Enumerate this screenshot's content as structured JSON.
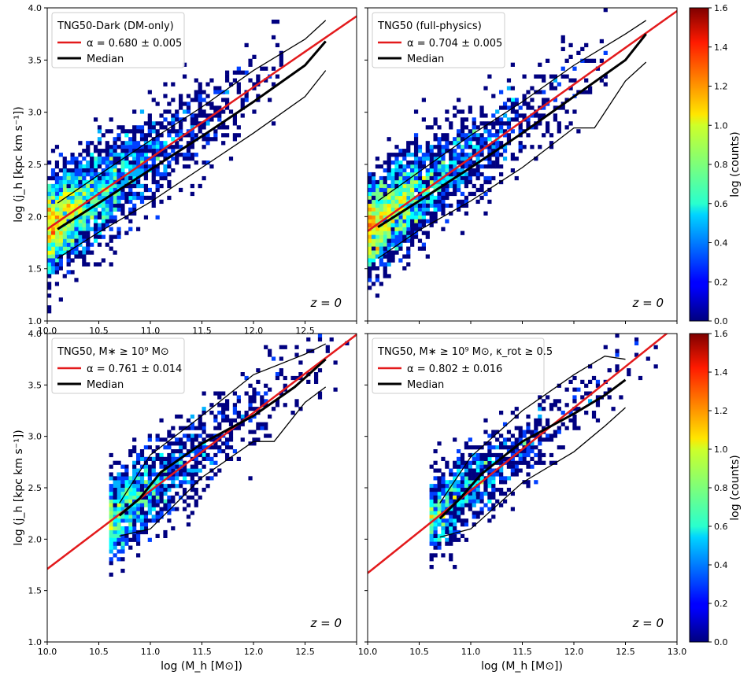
{
  "chart_data": [
    {
      "type": "heatmap",
      "panel": "top-left",
      "title": "TNG50-Dark (DM-only)",
      "legend": [
        {
          "label": "α = 0.680 ± 0.005",
          "color": "#e31a1c"
        },
        {
          "label": "Median",
          "color": "#000000"
        }
      ],
      "annotation": "z = 0",
      "xlim": [
        10.0,
        13.0
      ],
      "ylim": [
        1.0,
        4.0
      ],
      "xticks": [
        "10.0",
        "10.5",
        "11.0",
        "11.5",
        "12.0",
        "12.5"
      ],
      "yticks": [
        "1.0",
        "1.5",
        "2.0",
        "2.5",
        "3.0",
        "3.5",
        "4.0"
      ],
      "xlabel": "",
      "ylabel": "log (j_h [kpc km s⁻¹])",
      "fit": {
        "slope": 0.68,
        "x": [
          10.0,
          13.0
        ],
        "y": [
          1.88,
          3.92
        ]
      },
      "median": {
        "x": [
          10.1,
          10.5,
          11.0,
          11.5,
          12.0,
          12.5,
          12.7
        ],
        "y": [
          1.88,
          2.13,
          2.45,
          2.77,
          3.1,
          3.45,
          3.68
        ]
      },
      "p16": {
        "x": [
          10.1,
          10.5,
          11.0,
          11.5,
          12.0,
          12.5,
          12.7
        ],
        "y": [
          1.6,
          1.85,
          2.14,
          2.47,
          2.8,
          3.15,
          3.4
        ]
      },
      "p84": {
        "x": [
          10.1,
          10.5,
          11.0,
          11.5,
          12.0,
          12.5,
          12.7
        ],
        "y": [
          2.13,
          2.4,
          2.73,
          3.05,
          3.4,
          3.7,
          3.88
        ]
      },
      "cloud": {
        "x0": 10.0,
        "y0": 1.88,
        "slope": 0.68,
        "xmax": 12.9,
        "scatter": 0.23,
        "n": 2600,
        "dense_below": 11.3
      }
    },
    {
      "type": "heatmap",
      "panel": "top-right",
      "title": "TNG50 (full-physics)",
      "legend": [
        {
          "label": "α = 0.704 ± 0.005",
          "color": "#e31a1c"
        },
        {
          "label": "Median",
          "color": "#000000"
        }
      ],
      "annotation": "z = 0",
      "xlim": [
        10.0,
        13.0
      ],
      "ylim": [
        1.0,
        4.0
      ],
      "xticks": [],
      "yticks": [],
      "xlabel": "",
      "ylabel": "",
      "fit": {
        "slope": 0.704,
        "x": [
          10.0,
          13.0
        ],
        "y": [
          1.86,
          3.97
        ]
      },
      "median": {
        "x": [
          10.1,
          10.5,
          11.0,
          11.5,
          12.0,
          12.5,
          12.7
        ],
        "y": [
          1.9,
          2.15,
          2.47,
          2.8,
          3.15,
          3.5,
          3.75
        ]
      },
      "p16": {
        "x": [
          10.1,
          10.5,
          11.0,
          11.5,
          12.0,
          12.2,
          12.5,
          12.7
        ],
        "y": [
          1.6,
          1.87,
          2.15,
          2.47,
          2.85,
          2.85,
          3.3,
          3.48
        ]
      },
      "p84": {
        "x": [
          10.1,
          10.5,
          11.0,
          11.5,
          12.0,
          12.5,
          12.7
        ],
        "y": [
          2.15,
          2.43,
          2.78,
          3.1,
          3.45,
          3.75,
          3.88
        ]
      },
      "cloud": {
        "x0": 10.0,
        "y0": 1.88,
        "slope": 0.71,
        "xmax": 12.9,
        "scatter": 0.22,
        "n": 2500,
        "dense_below": 11.3
      }
    },
    {
      "type": "heatmap",
      "panel": "bottom-left",
      "title": "TNG50, M∗ ≥ 10⁹ M⊙",
      "legend": [
        {
          "label": "α = 0.761 ± 0.014",
          "color": "#e31a1c"
        },
        {
          "label": "Median",
          "color": "#000000"
        }
      ],
      "annotation": "z = 0",
      "xlim": [
        10.0,
        13.0
      ],
      "ylim": [
        1.0,
        4.0
      ],
      "xticks": [
        "10.0",
        "10.5",
        "11.0",
        "11.5",
        "12.0",
        "12.5"
      ],
      "yticks": [
        "1.0",
        "1.5",
        "2.0",
        "2.5",
        "3.0",
        "3.5",
        "4.0"
      ],
      "xlabel": "log (M_h [M⊙])",
      "ylabel": "log (j_h [kpc km s⁻¹])",
      "fit": {
        "slope": 0.761,
        "x": [
          10.0,
          13.0
        ],
        "y": [
          1.71,
          3.99
        ]
      },
      "median": {
        "x": [
          10.7,
          10.9,
          11.1,
          11.5,
          12.0,
          12.4,
          12.7
        ],
        "y": [
          2.23,
          2.4,
          2.65,
          2.93,
          3.2,
          3.48,
          3.75
        ]
      },
      "p16": {
        "x": [
          10.7,
          11.0,
          11.5,
          12.0,
          12.2,
          12.5,
          12.7
        ],
        "y": [
          2.03,
          2.1,
          2.6,
          2.95,
          2.95,
          3.33,
          3.48
        ]
      },
      "p84": {
        "x": [
          10.7,
          11.0,
          11.5,
          12.0,
          12.5,
          12.7
        ],
        "y": [
          2.35,
          2.82,
          3.2,
          3.6,
          3.8,
          3.9
        ]
      },
      "cloud": {
        "x0": 10.0,
        "y0": 1.73,
        "slope": 0.76,
        "xmin": 10.6,
        "xmax": 12.9,
        "scatter": 0.21,
        "n": 1300,
        "dense_below": 11.4
      }
    },
    {
      "type": "heatmap",
      "panel": "bottom-right",
      "title": "TNG50, M∗ ≥ 10⁹ M⊙, κ_rot ≥ 0.5",
      "legend": [
        {
          "label": "α = 0.802 ± 0.016",
          "color": "#e31a1c"
        },
        {
          "label": "Median",
          "color": "#000000"
        }
      ],
      "annotation": "z = 0",
      "xlim": [
        10.0,
        13.0
      ],
      "ylim": [
        1.0,
        4.0
      ],
      "xticks": [
        "10.0",
        "10.5",
        "11.0",
        "11.5",
        "12.0",
        "12.5",
        "13.0"
      ],
      "yticks": [],
      "xlabel": "log (M_h [M⊙])",
      "ylabel": "",
      "fit": {
        "slope": 0.802,
        "x": [
          10.0,
          13.0
        ],
        "y": [
          1.67,
          4.08
        ]
      },
      "median": {
        "x": [
          10.7,
          10.9,
          11.1,
          11.5,
          12.0,
          12.3,
          12.5
        ],
        "y": [
          2.2,
          2.4,
          2.63,
          2.95,
          3.22,
          3.4,
          3.55
        ]
      },
      "p16": {
        "x": [
          10.7,
          11.0,
          11.5,
          12.0,
          12.3,
          12.5
        ],
        "y": [
          2.02,
          2.1,
          2.55,
          2.85,
          3.1,
          3.28
        ]
      },
      "p84": {
        "x": [
          10.7,
          11.0,
          11.5,
          12.0,
          12.3,
          12.5
        ],
        "y": [
          2.35,
          2.8,
          3.25,
          3.6,
          3.78,
          3.75
        ]
      },
      "cloud": {
        "x0": 10.0,
        "y0": 1.7,
        "slope": 0.8,
        "xmin": 10.6,
        "xmax": 12.9,
        "scatter": 0.19,
        "n": 1000,
        "dense_below": 11.4
      }
    }
  ],
  "colorbar": {
    "label": "log (counts)",
    "range": [
      0.0,
      1.6
    ],
    "ticks": [
      "0.0",
      "0.2",
      "0.4",
      "0.6",
      "0.8",
      "1.0",
      "1.2",
      "1.4",
      "1.6"
    ],
    "colormap": "jet"
  }
}
